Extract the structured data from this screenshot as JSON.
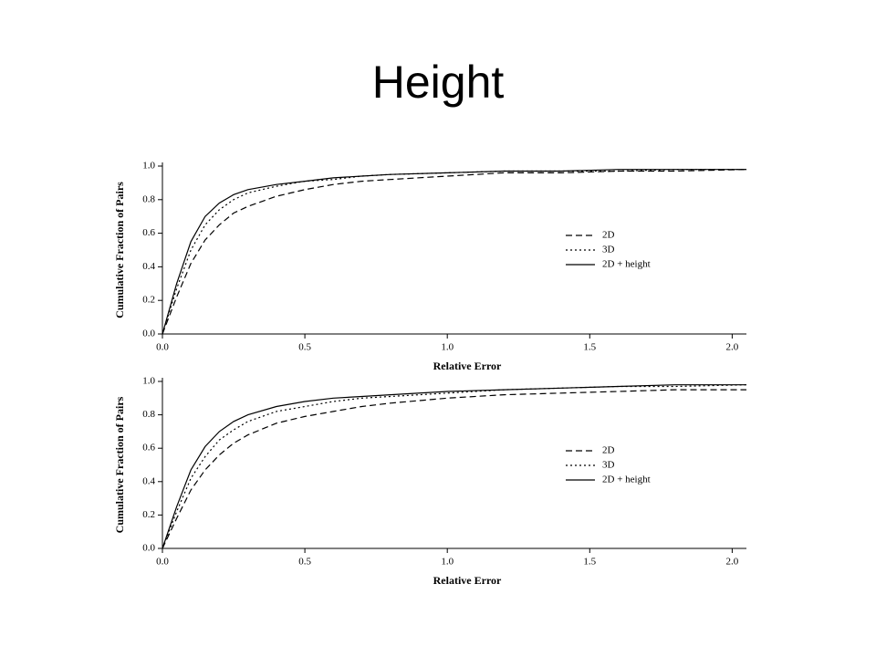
{
  "title": "Height",
  "chart_data": [
    {
      "type": "line",
      "xlabel": "Relative Error",
      "ylabel": "Cumulative Fraction of Pairs",
      "xlim": [
        0,
        2.05
      ],
      "ylim": [
        0,
        1.0
      ],
      "xticks": [
        {
          "value": 0,
          "label": "0.0"
        },
        0.5,
        {
          "value": 1,
          "label": "1.0"
        },
        1.5,
        {
          "value": 2,
          "label": "2.0"
        }
      ],
      "yticks": [
        {
          "value": 0,
          "label": "0.0"
        },
        0.2,
        0.4,
        0.6,
        0.8,
        {
          "value": 1,
          "label": "1.0"
        }
      ],
      "legend": "right",
      "x": [
        0,
        0.05,
        0.1,
        0.15,
        0.2,
        0.25,
        0.3,
        0.4,
        0.5,
        0.6,
        0.7,
        0.8,
        1.0,
        1.2,
        1.4,
        1.6,
        1.8,
        2.05
      ],
      "series": [
        {
          "name": "2D",
          "color": "#000000",
          "dash": "dashed",
          "values": [
            0,
            0.22,
            0.42,
            0.56,
            0.65,
            0.72,
            0.76,
            0.82,
            0.86,
            0.89,
            0.91,
            0.92,
            0.94,
            0.96,
            0.96,
            0.97,
            0.97,
            0.98
          ]
        },
        {
          "name": "3D",
          "color": "#000000",
          "dash": "dotted",
          "values": [
            0,
            0.27,
            0.5,
            0.65,
            0.74,
            0.8,
            0.84,
            0.88,
            0.91,
            0.92,
            0.94,
            0.95,
            0.96,
            0.97,
            0.97,
            0.97,
            0.98,
            0.98
          ]
        },
        {
          "name": "2D + height",
          "color": "#000000",
          "dash": "solid",
          "values": [
            0,
            0.3,
            0.55,
            0.7,
            0.78,
            0.83,
            0.86,
            0.89,
            0.91,
            0.93,
            0.94,
            0.95,
            0.96,
            0.97,
            0.97,
            0.98,
            0.98,
            0.98
          ]
        }
      ]
    },
    {
      "type": "line",
      "xlabel": "Relative Error",
      "ylabel": "Cumulative Fraction of Pairs",
      "xlim": [
        0,
        2.05
      ],
      "ylim": [
        0,
        1.0
      ],
      "xticks": [
        {
          "value": 0,
          "label": "0.0"
        },
        0.5,
        {
          "value": 1,
          "label": "1.0"
        },
        1.5,
        {
          "value": 2,
          "label": "2.0"
        }
      ],
      "yticks": [
        {
          "value": 0,
          "label": "0.0"
        },
        0.2,
        0.4,
        0.6,
        0.8,
        {
          "value": 1,
          "label": "1.0"
        }
      ],
      "legend": "right",
      "x": [
        0,
        0.05,
        0.1,
        0.15,
        0.2,
        0.25,
        0.3,
        0.4,
        0.5,
        0.6,
        0.7,
        0.8,
        1.0,
        1.2,
        1.4,
        1.6,
        1.8,
        2.05
      ],
      "series": [
        {
          "name": "2D",
          "color": "#000000",
          "dash": "dashed",
          "values": [
            0,
            0.18,
            0.35,
            0.47,
            0.56,
            0.63,
            0.68,
            0.75,
            0.79,
            0.82,
            0.85,
            0.87,
            0.9,
            0.92,
            0.93,
            0.94,
            0.95,
            0.95
          ]
        },
        {
          "name": "3D",
          "color": "#000000",
          "dash": "dotted",
          "values": [
            0,
            0.22,
            0.42,
            0.55,
            0.65,
            0.71,
            0.76,
            0.82,
            0.85,
            0.88,
            0.9,
            0.91,
            0.93,
            0.95,
            0.96,
            0.97,
            0.97,
            0.98
          ]
        },
        {
          "name": "2D + height",
          "color": "#000000",
          "dash": "solid",
          "values": [
            0,
            0.25,
            0.47,
            0.61,
            0.7,
            0.76,
            0.8,
            0.85,
            0.88,
            0.9,
            0.91,
            0.92,
            0.94,
            0.95,
            0.96,
            0.97,
            0.98,
            0.98
          ]
        }
      ]
    }
  ]
}
